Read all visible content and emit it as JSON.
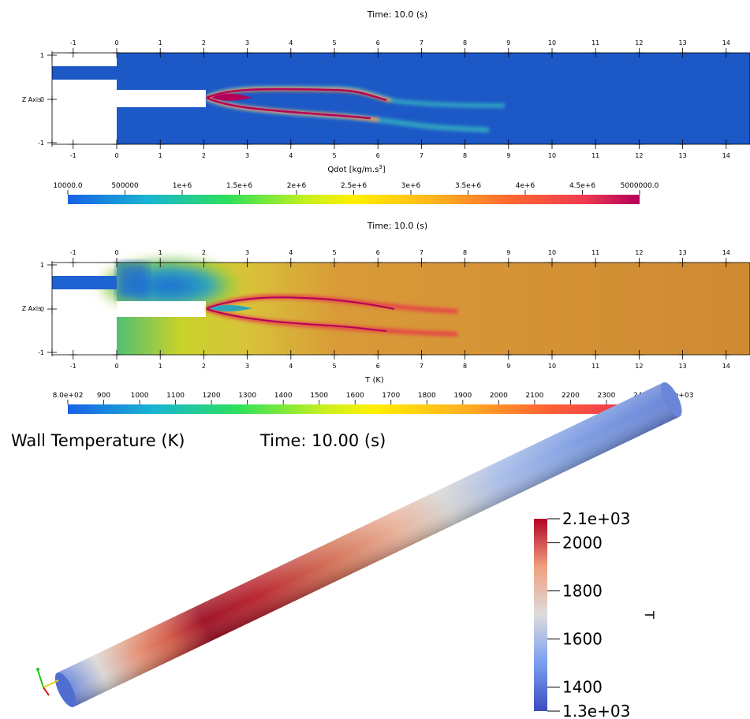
{
  "panel1": {
    "time_label": "Time: 10.0 (s)",
    "z_axis_label": "Z Axis",
    "x_ticks": [
      "-1",
      "0",
      "1",
      "2",
      "3",
      "4",
      "5",
      "6",
      "7",
      "8",
      "9",
      "10",
      "11",
      "12",
      "13",
      "14"
    ],
    "z_ticks": [
      "1",
      "0",
      "-1"
    ],
    "colorbar": {
      "title": "Qdot [kg/m.s",
      "title_sup": "3",
      "title_end": "]",
      "tick_labels": [
        "10000.0",
        "500000",
        "1e+6",
        "1.5e+6",
        "2e+6",
        "2.5e+6",
        "3e+6",
        "3.5e+6",
        "4e+6",
        "4.5e+6",
        "5000000.0"
      ],
      "colors": [
        "#1960e6",
        "#19b4d2",
        "#2ee05a",
        "#c8f01e",
        "#fff000",
        "#ffb41e",
        "#ff6432",
        "#f03c50",
        "#b4005a"
      ]
    },
    "field_background_color": "#1c58c6"
  },
  "panel2": {
    "time_label": "Time: 10.0 (s)",
    "z_axis_label": "Z Axis",
    "x_ticks": [
      "-1",
      "0",
      "1",
      "2",
      "3",
      "4",
      "5",
      "6",
      "7",
      "8",
      "9",
      "10",
      "11",
      "12",
      "13",
      "14"
    ],
    "z_ticks": [
      "1",
      "0",
      "-1"
    ],
    "colorbar": {
      "title": "T (K)",
      "tick_labels": [
        "8.0e+02",
        "900",
        "1000",
        "1100",
        "1200",
        "1300",
        "1400",
        "1500",
        "1600",
        "1700",
        "1800",
        "1900",
        "2000",
        "2100",
        "2200",
        "2300",
        "2400",
        "2.5e+03"
      ],
      "colors": [
        "#1960e6",
        "#19b4d2",
        "#2ee05a",
        "#c8f01e",
        "#fff000",
        "#ffb41e",
        "#ff6432",
        "#f03c50",
        "#b4005a"
      ]
    },
    "field_background_color": "#cf8a32"
  },
  "panel3": {
    "title": "Wall Temperature (K)",
    "time_label": "Time:  10.00 (s)",
    "colorbar": {
      "title": "T",
      "tick_labels": [
        "2.1e+03",
        "2000",
        "1800",
        "1600",
        "1400",
        "1.3e+03"
      ],
      "range": [
        1300,
        2100
      ],
      "colors": [
        "#3b4cc0",
        "#7a9ff0",
        "#dddcdc",
        "#f0a07e",
        "#b40426"
      ]
    }
  },
  "chart_data": [
    {
      "type": "heatmap",
      "title": "Time: 10.0 (s)",
      "field": "Qdot [kg/m.s3]",
      "xlabel": "",
      "ylabel": "Z Axis",
      "xlim": [
        -1.5,
        14.5
      ],
      "ylim": [
        -1.05,
        1.05
      ],
      "colorbar_range": [
        10000.0,
        5000000.0
      ]
    },
    {
      "type": "heatmap",
      "title": "Time: 10.0 (s)",
      "field": "T (K)",
      "xlabel": "",
      "ylabel": "Z Axis",
      "xlim": [
        -1.5,
        14.5
      ],
      "ylim": [
        -1.05,
        1.05
      ],
      "colorbar_range": [
        800,
        2500
      ]
    },
    {
      "type": "heatmap",
      "title": "Wall Temperature (K)",
      "field": "T",
      "colorbar_range": [
        1300,
        2100
      ]
    }
  ]
}
